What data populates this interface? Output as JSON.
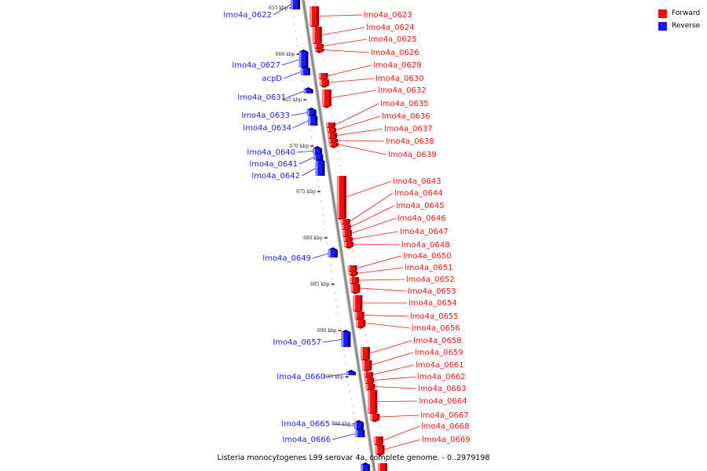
{
  "legend": {
    "forward_label": "Forward",
    "reverse_label": "Reverse"
  },
  "colors": {
    "forward": "#ee1111",
    "reverse": "#1a1aee",
    "backbone": "#888888"
  },
  "footer": "Listeria monocytogenes L99 serovar 4a, complete genome. - 0..2979198",
  "ticks": [
    "655 kbp",
    "660 kbp",
    "665 kbp",
    "670 kbp",
    "675 kbp",
    "680 kbp",
    "685 kbp",
    "690 kbp",
    "695 kbp",
    "700 kbp"
  ],
  "reverse_genes": [
    "lmo4a_0622",
    "lmo4a_0627",
    "acpD",
    "lmo4a_0631",
    "lmo4a_0633",
    "lmo4a_0634",
    "lmo4a_0640",
    "lmo4a_0641",
    "lmo4a_0642",
    "lmo4a_0649",
    "lmo4a_0657",
    "lmo4a_0660",
    "lmo4a_0665",
    "lmo4a_0666"
  ],
  "forward_genes": [
    "lmo4a_0623",
    "lmo4a_0624",
    "lmo4a_0625",
    "lmo4a_0626",
    "lmo4a_0629",
    "lmo4a_0630",
    "lmo4a_0632",
    "lmo4a_0635",
    "lmo4a_0636",
    "lmo4a_0637",
    "lmo4a_0638",
    "lmo4a_0639",
    "lmo4a_0643",
    "lmo4a_0644",
    "lmo4a_0645",
    "lmo4a_0646",
    "lmo4a_0647",
    "lmo4a_0648",
    "lmo4a_0650",
    "lmo4a_0651",
    "lmo4a_0652",
    "lmo4a_0653",
    "lmo4a_0654",
    "lmo4a_0655",
    "lmo4a_0656",
    "lmo4a_0658",
    "lmo4a_0659",
    "lmo4a_0661",
    "lmo4a_0662",
    "lmo4a_0663",
    "lmo4a_0664",
    "lmo4a_0667",
    "lmo4a_0668",
    "lmo4a_0669"
  ]
}
